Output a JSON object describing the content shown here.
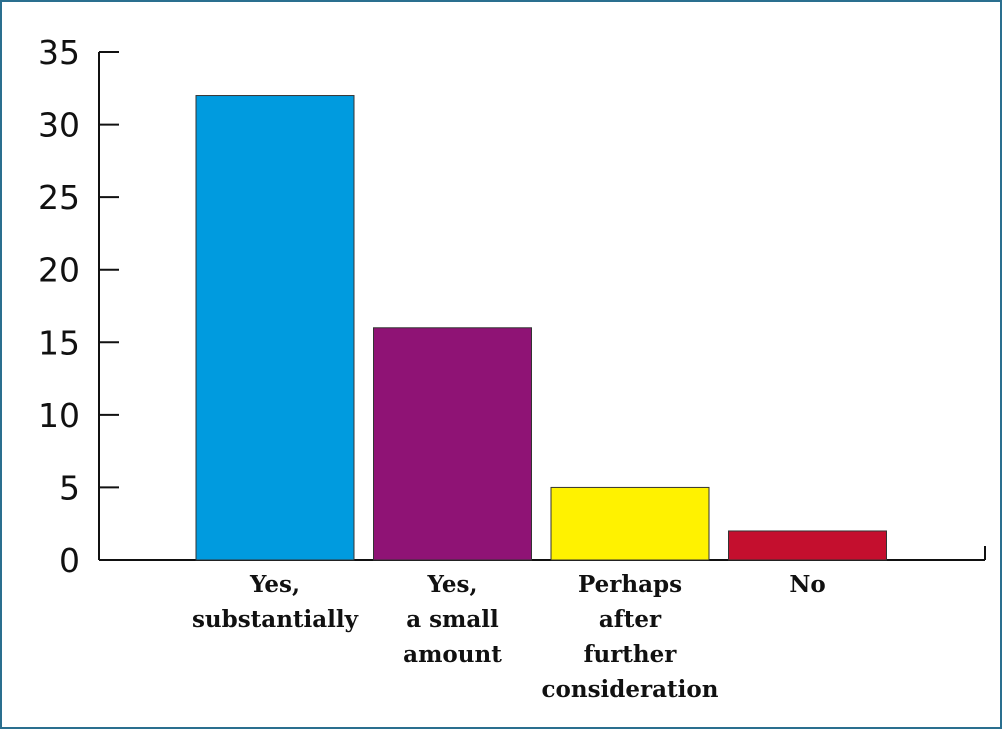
{
  "chart_data": {
    "type": "bar",
    "categories": [
      [
        "Yes,",
        "substantially"
      ],
      [
        "Yes,",
        "a small",
        "amount"
      ],
      [
        "Perhaps",
        "after",
        "further",
        "consideration"
      ],
      [
        "No"
      ]
    ],
    "values": [
      32,
      16,
      5,
      2
    ],
    "colors": [
      "#009bdf",
      "#8f1375",
      "#fff200",
      "#c40f2e"
    ],
    "yticks": [
      0,
      5,
      10,
      15,
      20,
      25,
      30,
      35
    ],
    "ylim": [
      0,
      35
    ],
    "grid": false,
    "legend": "none"
  }
}
